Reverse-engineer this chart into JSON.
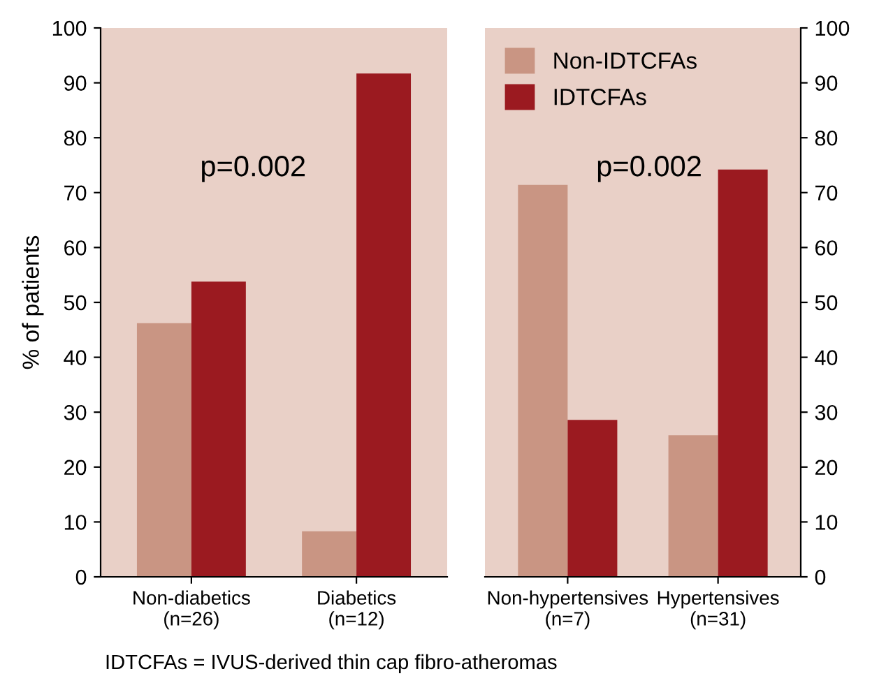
{
  "chart_data": [
    {
      "type": "bar",
      "ylabel": "% of patients",
      "categories": [
        "Non-diabetics\n(n=26)",
        "Diabetics\n(n=12)"
      ],
      "series": [
        {
          "color": "#c99583",
          "values": [
            46.2,
            8.3
          ]
        },
        {
          "color": "#9b1a20",
          "values": [
            53.8,
            91.7
          ]
        }
      ],
      "ylim": [
        0,
        100
      ],
      "yticks": [
        0,
        10,
        20,
        30,
        40,
        50,
        60,
        70,
        80,
        90,
        100
      ],
      "grid": false,
      "legend": false,
      "annotations": [
        "p=0.002",
        "IDTCFAs = IVUS-derived thin cap fibro-atheromas"
      ]
    },
    {
      "type": "bar",
      "categories": [
        "Non-hypertensives\n(n=7)",
        "Hypertensives\n(n=31)"
      ],
      "series": [
        {
          "name": "Non-IDTCFAs",
          "color": "#c99583",
          "values": [
            71.4,
            25.8
          ]
        },
        {
          "name": "IDTCFAs",
          "color": "#9b1a20",
          "values": [
            28.6,
            74.2
          ]
        }
      ],
      "ylim": [
        0,
        100
      ],
      "yticks": [
        0,
        10,
        20,
        30,
        40,
        50,
        60,
        70,
        80,
        90,
        100
      ],
      "grid": false,
      "legend": "top left",
      "annotations": [
        "p=0.002"
      ]
    }
  ]
}
